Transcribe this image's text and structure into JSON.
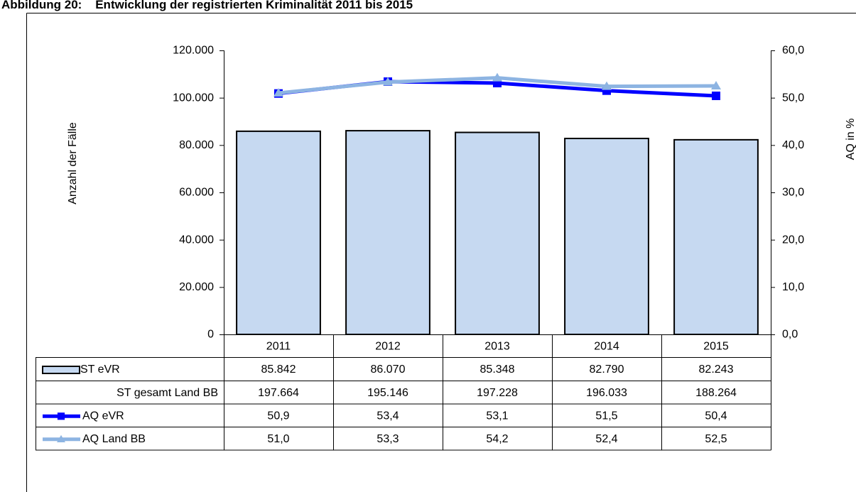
{
  "chart_data": {
    "type": "bar",
    "title": "Abbildung 20:    Entwicklung der registrierten Kriminalität 2011 bis 2015",
    "y_label": "Anzahl der Fälle",
    "y2_label": "AQ in %",
    "categories": [
      "2011",
      "2012",
      "2013",
      "2014",
      "2015"
    ],
    "series": [
      {
        "name": "ST eVR",
        "color": "#c6d9f1",
        "values": [
          85842,
          86070,
          85348,
          82790,
          82243
        ],
        "value_labels": [
          "85.842",
          "86.070",
          "85.348",
          "82.790",
          "82.243"
        ]
      },
      {
        "name": "ST gesamt Land BB",
        "values": [
          197664,
          195146,
          197228,
          196033,
          188264
        ],
        "value_labels": [
          "197.664",
          "195.146",
          "197.228",
          "196.033",
          "188.264"
        ]
      },
      {
        "name": "AQ eVR",
        "color": "#0000ff",
        "axis": "y2",
        "marker": "square",
        "values": [
          50.9,
          53.4,
          53.1,
          51.5,
          50.4
        ],
        "value_labels": [
          "50,9",
          "53,4",
          "53,1",
          "51,5",
          "50,4"
        ]
      },
      {
        "name": "AQ Land BB",
        "color": "#8db4e2",
        "axis": "y2",
        "marker": "triangle",
        "values": [
          51.0,
          53.3,
          54.2,
          52.4,
          52.5
        ],
        "value_labels": [
          "51,0",
          "53,3",
          "54,2",
          "52,4",
          "52,5"
        ]
      }
    ],
    "ylim": [
      0,
      120000
    ],
    "yticks": [
      0,
      {
        "value": 20000,
        "label": "20.000"
      },
      {
        "value": 40000,
        "label": "40.000"
      },
      {
        "value": 60000,
        "label": "60.000"
      },
      {
        "value": 80000,
        "label": "80.000"
      },
      {
        "value": 100000,
        "label": "100.000"
      },
      {
        "value": 120000,
        "label": "120.000"
      }
    ],
    "y2lim": [
      0,
      60
    ],
    "y2ticks": [
      {
        "value": 0,
        "label": "0,0"
      },
      {
        "value": 10,
        "label": "10,0"
      },
      {
        "value": 20,
        "label": "20,0"
      },
      {
        "value": 30,
        "label": "30,0"
      },
      {
        "value": 40,
        "label": "40,0"
      },
      {
        "value": 50,
        "label": "50,0"
      },
      {
        "value": 60,
        "label": "60,0"
      }
    ]
  }
}
